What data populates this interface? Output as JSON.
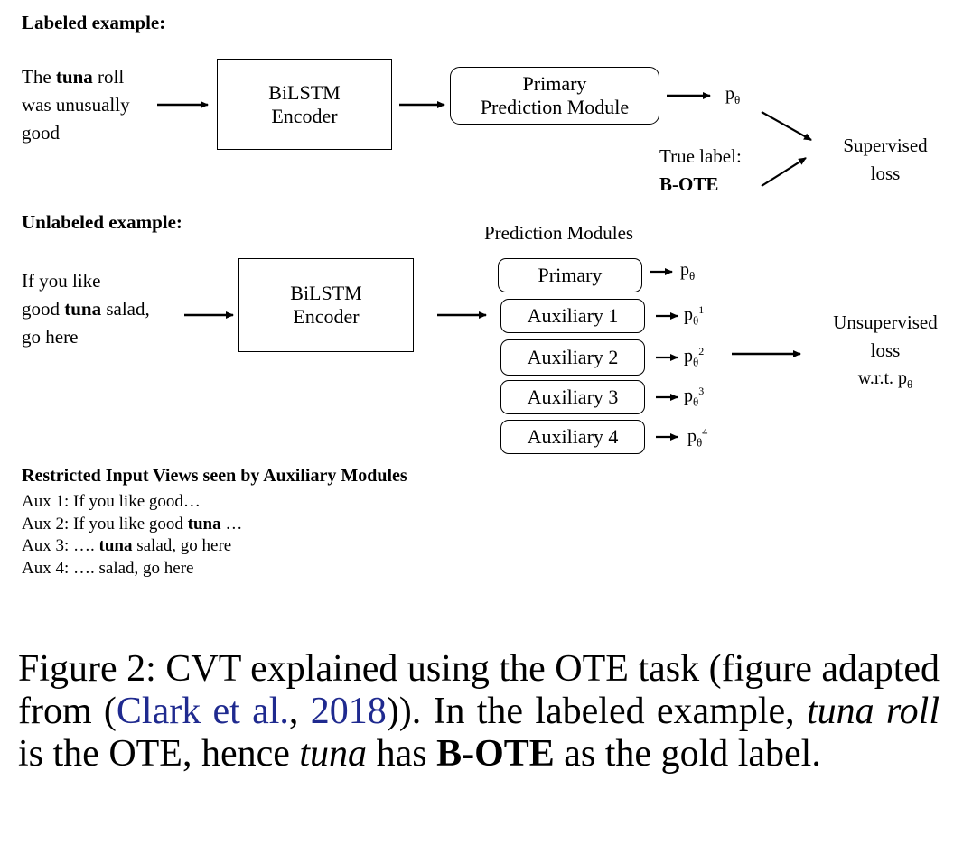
{
  "labeled": {
    "heading": "Labeled example:",
    "sentence": {
      "before": "The ",
      "bold": "tuna",
      "after": " roll",
      "line2": "was unusually",
      "line3": "good"
    },
    "encoder": {
      "line1": "BiLSTM",
      "line2": "Encoder"
    },
    "primary_module": {
      "line1": "Primary",
      "line2": "Prediction Module"
    },
    "output": {
      "base": "p",
      "sub": "θ"
    },
    "true_label": {
      "line1": "True label:",
      "line2": "B-OTE"
    },
    "loss": {
      "line1": "Supervised",
      "line2": "loss"
    }
  },
  "unlabeled": {
    "heading": "Unlabeled example:",
    "sentence": {
      "line1": "If you like",
      "before2": "good ",
      "bold": "tuna",
      "after2": " salad,",
      "line3": "go here"
    },
    "encoder": {
      "line1": "BiLSTM",
      "line2": "Encoder"
    },
    "modules_title": "Prediction Modules",
    "modules": [
      {
        "label": "Primary",
        "out_base": "p",
        "out_sub": "θ",
        "out_sup": ""
      },
      {
        "label": "Auxiliary 1",
        "out_base": "p",
        "out_sub": "θ",
        "out_sup": "1"
      },
      {
        "label": "Auxiliary 2",
        "out_base": "p",
        "out_sub": "θ",
        "out_sup": "2"
      },
      {
        "label": "Auxiliary 3",
        "out_base": "p",
        "out_sub": "θ",
        "out_sup": "3"
      },
      {
        "label": "Auxiliary 4",
        "out_base": "p",
        "out_sub": "θ",
        "out_sup": "4"
      }
    ],
    "loss": {
      "line1": "Unsupervised",
      "line2": "loss",
      "line3_pre": "w.r.t. p",
      "line3_sub": "θ"
    }
  },
  "views": {
    "heading": "Restricted Input Views seen by Auxiliary Modules",
    "items": [
      {
        "pre": "Aux 1: If you like good…",
        "bold": "",
        "post": ""
      },
      {
        "pre": "Aux 2: If you like good ",
        "bold": "tuna",
        "post": " …"
      },
      {
        "pre": "Aux 3: …. ",
        "bold": "tuna",
        "post": " salad, go here"
      },
      {
        "pre": "Aux 4: …. salad, go here",
        "bold": "",
        "post": ""
      }
    ]
  },
  "caption": {
    "p1": "Figure 2:  CVT explained using the OTE task (figure adapted from (",
    "cite_name": "Clark et al.",
    "p2": ", ",
    "cite_year": "2018",
    "p3": ")).  In the labeled example, ",
    "italic1": "tuna roll",
    "p4": " is the OTE, hence ",
    "italic2": "tuna",
    "p5": " has ",
    "bold": "B-OTE",
    "p6": " as the gold label."
  }
}
